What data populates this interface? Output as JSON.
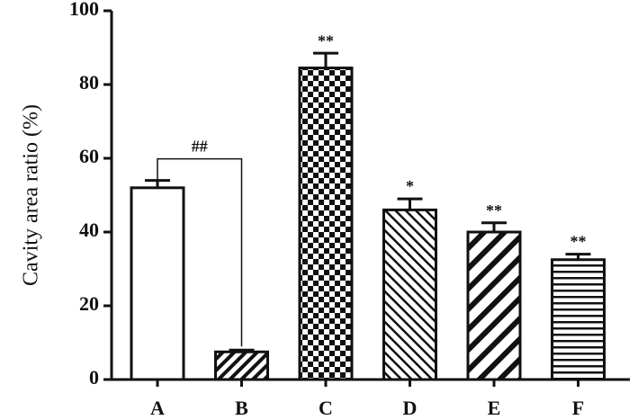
{
  "chart_data": {
    "type": "bar",
    "y_label": "Cavity area ratio (%)",
    "categories": [
      "A",
      "B",
      "C",
      "D",
      "E",
      "F"
    ],
    "values": [
      52,
      7.5,
      84.5,
      46,
      40,
      32.5
    ],
    "errors": [
      2,
      0.5,
      4,
      3,
      2.5,
      1.5
    ],
    "annotations": [
      null,
      null,
      "**",
      "*",
      "**",
      "**"
    ],
    "bracket_label": "##",
    "patterns": [
      "none",
      "hatch",
      "checker",
      "back-hatch",
      "wide-hatch",
      "horizontal"
    ],
    "color": "#111111",
    "ylim": [
      0,
      100
    ],
    "yticks": [
      0,
      20,
      40,
      60,
      80,
      100
    ]
  }
}
